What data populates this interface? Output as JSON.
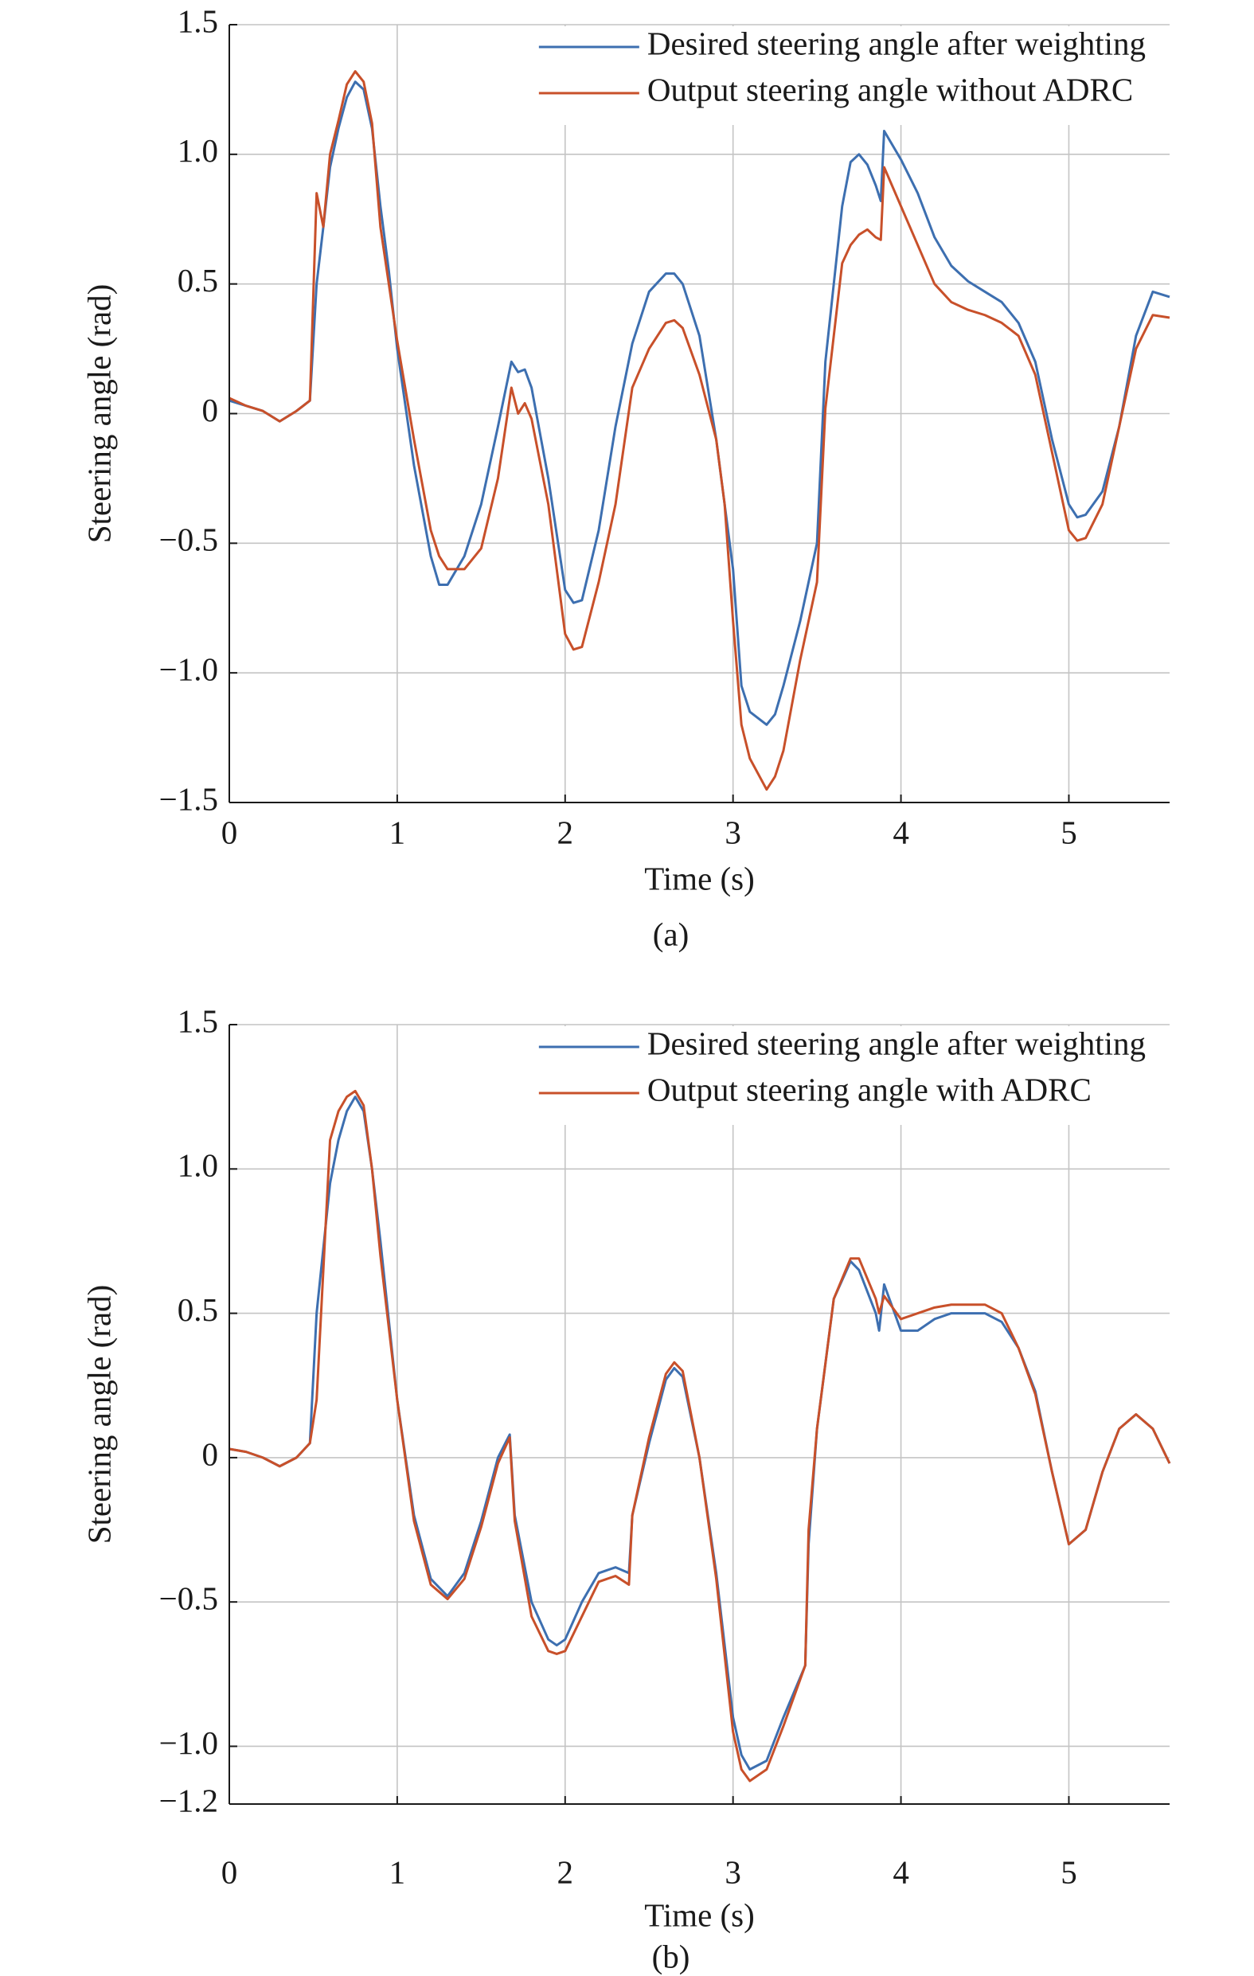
{
  "chart_data": [
    {
      "type": "line",
      "caption": "(a)",
      "xlabel": "Time (s)",
      "ylabel": "Steering angle (rad)",
      "xlim": [
        0,
        5.6
      ],
      "xticks": [
        0,
        1,
        2,
        3,
        4,
        5
      ],
      "ylim": [
        -1.5,
        1.5
      ],
      "yticks": [
        {
          "value": -1.5,
          "label": "−1.5"
        },
        {
          "value": -1,
          "label": "−1.0"
        },
        {
          "value": -0.5,
          "label": "−0.5"
        },
        0,
        {
          "value": 0.5,
          "label": "0.5"
        },
        {
          "value": 1,
          "label": "1.0"
        },
        {
          "value": 1.5,
          "label": "1.5"
        }
      ],
      "grid": true,
      "legend": "upper right",
      "x": [
        0,
        0.1,
        0.2,
        0.3,
        0.4,
        0.48,
        0.52,
        0.56,
        0.6,
        0.65,
        0.7,
        0.75,
        0.8,
        0.85,
        0.9,
        0.95,
        1.0,
        1.1,
        1.2,
        1.25,
        1.3,
        1.4,
        1.5,
        1.6,
        1.68,
        1.72,
        1.76,
        1.8,
        1.9,
        2.0,
        2.05,
        2.1,
        2.2,
        2.3,
        2.4,
        2.5,
        2.6,
        2.65,
        2.7,
        2.8,
        2.9,
        2.95,
        3.0,
        3.05,
        3.1,
        3.2,
        3.25,
        3.3,
        3.4,
        3.5,
        3.55,
        3.6,
        3.65,
        3.7,
        3.75,
        3.8,
        3.85,
        3.88,
        3.9,
        4.0,
        4.1,
        4.2,
        4.3,
        4.4,
        4.5,
        4.6,
        4.7,
        4.8,
        4.9,
        5.0,
        5.05,
        5.1,
        5.2,
        5.3,
        5.4,
        5.5,
        5.6
      ],
      "series": [
        {
          "name": "Desired steering angle after weighting",
          "color": "#3d6fb0",
          "values": [
            0.05,
            0.03,
            0.01,
            -0.03,
            0.01,
            0.05,
            0.5,
            0.72,
            0.95,
            1.1,
            1.22,
            1.28,
            1.25,
            1.1,
            0.8,
            0.55,
            0.25,
            -0.2,
            -0.55,
            -0.66,
            -0.66,
            -0.55,
            -0.35,
            -0.05,
            0.2,
            0.16,
            0.17,
            0.1,
            -0.25,
            -0.68,
            -0.73,
            -0.72,
            -0.45,
            -0.05,
            0.27,
            0.47,
            0.54,
            0.54,
            0.5,
            0.3,
            -0.1,
            -0.35,
            -0.6,
            -1.05,
            -1.15,
            -1.2,
            -1.16,
            -1.05,
            -0.8,
            -0.5,
            0.2,
            0.5,
            0.8,
            0.97,
            1.0,
            0.96,
            0.88,
            0.82,
            1.09,
            0.98,
            0.85,
            0.68,
            0.57,
            0.51,
            0.47,
            0.43,
            0.35,
            0.2,
            -0.1,
            -0.35,
            -0.4,
            -0.39,
            -0.3,
            -0.05,
            0.3,
            0.47,
            0.45
          ]
        },
        {
          "name": "Output steering angle without ADRC",
          "color": "#c8502a",
          "values": [
            0.06,
            0.03,
            0.01,
            -0.03,
            0.01,
            0.05,
            0.85,
            0.72,
            1.0,
            1.13,
            1.27,
            1.32,
            1.28,
            1.12,
            0.72,
            0.5,
            0.28,
            -0.1,
            -0.45,
            -0.55,
            -0.6,
            -0.6,
            -0.52,
            -0.25,
            0.1,
            0.0,
            0.04,
            -0.02,
            -0.35,
            -0.85,
            -0.91,
            -0.9,
            -0.65,
            -0.35,
            0.1,
            0.25,
            0.35,
            0.36,
            0.33,
            0.15,
            -0.1,
            -0.35,
            -0.8,
            -1.2,
            -1.33,
            -1.45,
            -1.4,
            -1.3,
            -0.95,
            -0.65,
            0.02,
            0.3,
            0.58,
            0.65,
            0.69,
            0.71,
            0.68,
            0.67,
            0.95,
            0.8,
            0.65,
            0.5,
            0.43,
            0.4,
            0.38,
            0.35,
            0.3,
            0.15,
            -0.15,
            -0.45,
            -0.49,
            -0.48,
            -0.35,
            -0.05,
            0.25,
            0.38,
            0.37
          ]
        }
      ]
    },
    {
      "type": "line",
      "caption": "(b)",
      "xlabel": "Time (s)",
      "ylabel": "Steering angle (rad)",
      "xlim": [
        0,
        5.6
      ],
      "xticks": [
        0,
        1,
        2,
        3,
        4,
        5
      ],
      "ylim": [
        -1.2,
        1.5
      ],
      "yticks": [
        {
          "value": -1.2,
          "label": "−1.2"
        },
        {
          "value": -1,
          "label": "−1.0"
        },
        {
          "value": -0.5,
          "label": "−0.5"
        },
        0,
        {
          "value": 0.5,
          "label": "0.5"
        },
        {
          "value": 1,
          "label": "1.0"
        },
        {
          "value": 1.5,
          "label": "1.5"
        }
      ],
      "grid": true,
      "legend": "upper right",
      "x": [
        0,
        0.1,
        0.2,
        0.3,
        0.4,
        0.48,
        0.52,
        0.6,
        0.65,
        0.7,
        0.75,
        0.8,
        0.85,
        0.9,
        1.0,
        1.1,
        1.2,
        1.3,
        1.4,
        1.5,
        1.6,
        1.67,
        1.7,
        1.8,
        1.9,
        1.95,
        2.0,
        2.1,
        2.2,
        2.3,
        2.38,
        2.4,
        2.5,
        2.6,
        2.65,
        2.7,
        2.8,
        2.9,
        3.0,
        3.05,
        3.1,
        3.2,
        3.3,
        3.43,
        3.45,
        3.5,
        3.6,
        3.7,
        3.75,
        3.85,
        3.87,
        3.9,
        4.0,
        4.1,
        4.2,
        4.3,
        4.4,
        4.5,
        4.6,
        4.7,
        4.8,
        4.9,
        5.0,
        5.1,
        5.2,
        5.3,
        5.4,
        5.5,
        5.6
      ],
      "series": [
        {
          "name": "Desired steering angle after weighting",
          "color": "#3d6fb0",
          "values": [
            0.03,
            0.02,
            0.0,
            -0.03,
            0.0,
            0.05,
            0.5,
            0.95,
            1.1,
            1.2,
            1.25,
            1.2,
            1.0,
            0.75,
            0.2,
            -0.2,
            -0.42,
            -0.48,
            -0.4,
            -0.22,
            0.0,
            0.08,
            -0.2,
            -0.5,
            -0.63,
            -0.65,
            -0.63,
            -0.5,
            -0.4,
            -0.38,
            -0.4,
            -0.2,
            0.05,
            0.27,
            0.31,
            0.28,
            0.0,
            -0.4,
            -0.9,
            -1.03,
            -1.08,
            -1.05,
            -0.9,
            -0.72,
            -0.3,
            0.1,
            0.55,
            0.68,
            0.65,
            0.5,
            0.44,
            0.6,
            0.44,
            0.44,
            0.48,
            0.5,
            0.5,
            0.5,
            0.47,
            0.38,
            0.23,
            -0.05,
            -0.3,
            -0.25,
            -0.05,
            0.1,
            0.15,
            0.1,
            -0.02
          ]
        },
        {
          "name": "Output steering angle with ADRC",
          "color": "#c8502a",
          "values": [
            0.03,
            0.02,
            0.0,
            -0.03,
            0.0,
            0.05,
            0.2,
            1.1,
            1.2,
            1.25,
            1.27,
            1.22,
            1.0,
            0.7,
            0.2,
            -0.22,
            -0.44,
            -0.49,
            -0.42,
            -0.24,
            -0.02,
            0.07,
            -0.22,
            -0.55,
            -0.67,
            -0.68,
            -0.67,
            -0.55,
            -0.43,
            -0.41,
            -0.44,
            -0.2,
            0.07,
            0.29,
            0.33,
            0.3,
            0.0,
            -0.42,
            -0.95,
            -1.08,
            -1.12,
            -1.08,
            -0.93,
            -0.72,
            -0.25,
            0.1,
            0.55,
            0.69,
            0.69,
            0.55,
            0.5,
            0.56,
            0.48,
            0.5,
            0.52,
            0.53,
            0.53,
            0.53,
            0.5,
            0.38,
            0.22,
            -0.05,
            -0.3,
            -0.25,
            -0.05,
            0.1,
            0.15,
            0.1,
            -0.02
          ]
        }
      ]
    }
  ]
}
